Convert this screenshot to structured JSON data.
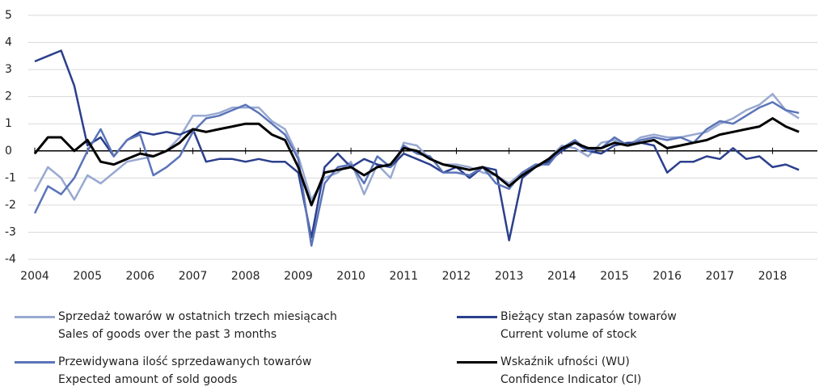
{
  "chart_data": {
    "type": "line",
    "x": [
      2004,
      2004.25,
      2004.5,
      2004.75,
      2005,
      2005.25,
      2005.5,
      2005.75,
      2006,
      2006.25,
      2006.5,
      2006.75,
      2007,
      2007.25,
      2007.5,
      2007.75,
      2008,
      2008.25,
      2008.5,
      2008.75,
      2009,
      2009.25,
      2009.5,
      2009.75,
      2010,
      2010.25,
      2010.5,
      2010.75,
      2011,
      2011.25,
      2011.5,
      2011.75,
      2012,
      2012.25,
      2012.5,
      2012.75,
      2013,
      2013.25,
      2013.5,
      2013.75,
      2014,
      2014.25,
      2014.5,
      2014.75,
      2015,
      2015.25,
      2015.5,
      2015.75,
      2016,
      2016.25,
      2016.5,
      2016.75,
      2017,
      2017.25,
      2017.5,
      2017.75,
      2018,
      2018.25,
      2018.5
    ],
    "series": [
      {
        "name": "Sprzedaż towarów w ostatnich trzech miesiącach\nSales of goods over the past 3 months",
        "color": "#98a9d1",
        "values": [
          -1.5,
          -0.6,
          -1.0,
          -1.8,
          -0.9,
          -1.2,
          -0.8,
          -0.4,
          -0.3,
          -0.2,
          0.0,
          0.5,
          1.3,
          1.3,
          1.4,
          1.6,
          1.6,
          1.6,
          1.1,
          0.8,
          -0.2,
          -1.8,
          -1.0,
          -0.8,
          -0.4,
          -1.6,
          -0.5,
          -1.0,
          0.3,
          0.2,
          -0.3,
          -0.5,
          -0.5,
          -0.6,
          -0.8,
          -0.9,
          -1.2,
          -0.8,
          -0.6,
          -0.3,
          0.2,
          0.1,
          -0.2,
          0.3,
          0.4,
          0.2,
          0.5,
          0.6,
          0.5,
          0.5,
          0.6,
          0.7,
          1.0,
          1.2,
          1.5,
          1.7,
          2.1,
          1.5,
          1.2
        ]
      },
      {
        "name": "Bieżący stan zapasów towarów\nCurrent volume of stock",
        "color": "#2b3f8c",
        "values": [
          3.3,
          3.5,
          3.7,
          2.4,
          0.2,
          0.5,
          -0.2,
          0.4,
          0.7,
          0.6,
          0.7,
          0.6,
          0.8,
          -0.4,
          -0.3,
          -0.3,
          -0.4,
          -0.3,
          -0.4,
          -0.4,
          -0.8,
          -3.2,
          -0.6,
          -0.1,
          -0.6,
          -0.3,
          -0.5,
          -0.6,
          -0.1,
          -0.3,
          -0.5,
          -0.8,
          -0.6,
          -1.0,
          -0.6,
          -0.7,
          -3.3,
          -1.0,
          -0.6,
          -0.4,
          0.0,
          0.3,
          0.0,
          -0.1,
          0.2,
          0.3,
          0.3,
          0.2,
          -0.8,
          -0.4,
          -0.4,
          -0.2,
          -0.3,
          0.1,
          -0.3,
          -0.2,
          -0.6,
          -0.5,
          -0.7
        ]
      },
      {
        "name": "Przewidywana ilość sprzedawanych towarów\nExpected amount of sold goods",
        "color": "#5b74b8",
        "values": [
          -2.3,
          -1.3,
          -1.6,
          -1.0,
          0.0,
          0.8,
          -0.2,
          0.4,
          0.6,
          -0.9,
          -0.6,
          -0.2,
          0.7,
          1.2,
          1.3,
          1.5,
          1.7,
          1.4,
          1.0,
          0.6,
          -0.3,
          -3.5,
          -1.2,
          -0.6,
          -0.5,
          -1.2,
          -0.2,
          -0.6,
          0.2,
          -0.1,
          -0.2,
          -0.8,
          -0.8,
          -0.9,
          -0.6,
          -1.2,
          -1.4,
          -0.8,
          -0.5,
          -0.5,
          0.1,
          0.4,
          0.0,
          0.1,
          0.5,
          0.2,
          0.4,
          0.5,
          0.4,
          0.5,
          0.3,
          0.8,
          1.1,
          1.0,
          1.3,
          1.6,
          1.8,
          1.5,
          1.4
        ]
      },
      {
        "name": "Wskaźnik ufności (WU)\nConfidence Indicator (CI)",
        "color": "#000000",
        "values": [
          -0.1,
          0.5,
          0.5,
          0.0,
          0.4,
          -0.4,
          -0.5,
          -0.3,
          -0.1,
          -0.2,
          0.0,
          0.3,
          0.8,
          0.7,
          0.8,
          0.9,
          1.0,
          1.0,
          0.6,
          0.4,
          -0.6,
          -2.0,
          -0.8,
          -0.7,
          -0.6,
          -0.9,
          -0.6,
          -0.5,
          0.1,
          0.0,
          -0.3,
          -0.5,
          -0.6,
          -0.7,
          -0.6,
          -0.9,
          -1.3,
          -0.9,
          -0.6,
          -0.3,
          0.1,
          0.3,
          0.1,
          0.1,
          0.3,
          0.2,
          0.3,
          0.4,
          0.1,
          0.2,
          0.3,
          0.4,
          0.6,
          0.7,
          0.8,
          0.9,
          1.2,
          0.9,
          0.7
        ]
      }
    ],
    "xlim": [
      2004,
      2018.85
    ],
    "xticks": [
      2004,
      2005,
      2006,
      2007,
      2008,
      2009,
      2010,
      2011,
      2012,
      2013,
      2014,
      2015,
      2016,
      2017,
      2018
    ],
    "ylim": [
      -4,
      5
    ],
    "yticks": [
      -4,
      -3,
      -2,
      -1,
      0,
      1,
      2,
      3,
      4,
      5
    ],
    "grid": true
  }
}
